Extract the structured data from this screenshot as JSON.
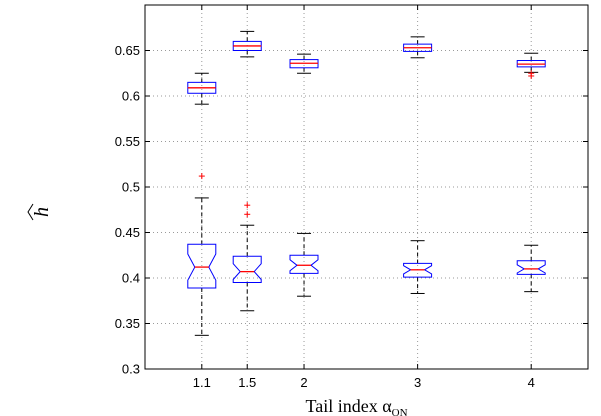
{
  "chart_data": {
    "type": "boxplot",
    "title": "",
    "xlabel": "Tail index α",
    "xlabel_sub": "ON",
    "ylabel": "h",
    "ylim": [
      0.3,
      0.7
    ],
    "yticks": [
      0.3,
      0.35,
      0.4,
      0.45,
      0.5,
      0.55,
      0.6,
      0.65
    ],
    "ytick_labels": [
      "0.3",
      "0.35",
      "0.4",
      "0.45",
      "0.5",
      "0.55",
      "0.6",
      "0.65"
    ],
    "xlim": [
      0.6,
      4.5
    ],
    "categories": [
      "1.1",
      "1.5",
      "2",
      "3",
      "4"
    ],
    "positions": [
      1.1,
      1.5,
      2,
      3,
      4
    ],
    "grid": true,
    "box_color": "#0000ff",
    "median_color": "#ff0000",
    "whisker_color": "#000000",
    "outlier_color": "#ff0000",
    "series": [
      {
        "boxes": [
          {
            "x": 1.1,
            "whisker_low": 0.591,
            "q1": 0.603,
            "median": 0.609,
            "q3": 0.615,
            "whisker_high": 0.625,
            "outliers": []
          },
          {
            "x": 1.5,
            "whisker_low": 0.643,
            "q1": 0.65,
            "median": 0.655,
            "q3": 0.66,
            "whisker_high": 0.671,
            "outliers": []
          },
          {
            "x": 2,
            "whisker_low": 0.625,
            "q1": 0.631,
            "median": 0.636,
            "q3": 0.64,
            "whisker_high": 0.646,
            "outliers": []
          },
          {
            "x": 3,
            "whisker_low": 0.642,
            "q1": 0.649,
            "median": 0.653,
            "q3": 0.657,
            "whisker_high": 0.665,
            "outliers": []
          },
          {
            "x": 4,
            "whisker_low": 0.626,
            "q1": 0.632,
            "median": 0.635,
            "q3": 0.639,
            "whisker_high": 0.647,
            "outliers": [
              0.625,
              0.622
            ]
          }
        ]
      },
      {
        "boxes": [
          {
            "x": 1.1,
            "whisker_low": 0.337,
            "q1": 0.389,
            "median": 0.412,
            "q3": 0.437,
            "whisker_high": 0.488,
            "outliers": [
              0.512
            ]
          },
          {
            "x": 1.5,
            "whisker_low": 0.364,
            "q1": 0.395,
            "median": 0.407,
            "q3": 0.424,
            "whisker_high": 0.458,
            "outliers": [
              0.47,
              0.48
            ]
          },
          {
            "x": 2,
            "whisker_low": 0.38,
            "q1": 0.405,
            "median": 0.414,
            "q3": 0.425,
            "whisker_high": 0.449,
            "outliers": []
          },
          {
            "x": 3,
            "whisker_low": 0.383,
            "q1": 0.401,
            "median": 0.409,
            "q3": 0.416,
            "whisker_high": 0.441,
            "outliers": []
          },
          {
            "x": 4,
            "whisker_low": 0.385,
            "q1": 0.404,
            "median": 0.41,
            "q3": 0.419,
            "whisker_high": 0.436,
            "outliers": []
          }
        ]
      }
    ]
  }
}
